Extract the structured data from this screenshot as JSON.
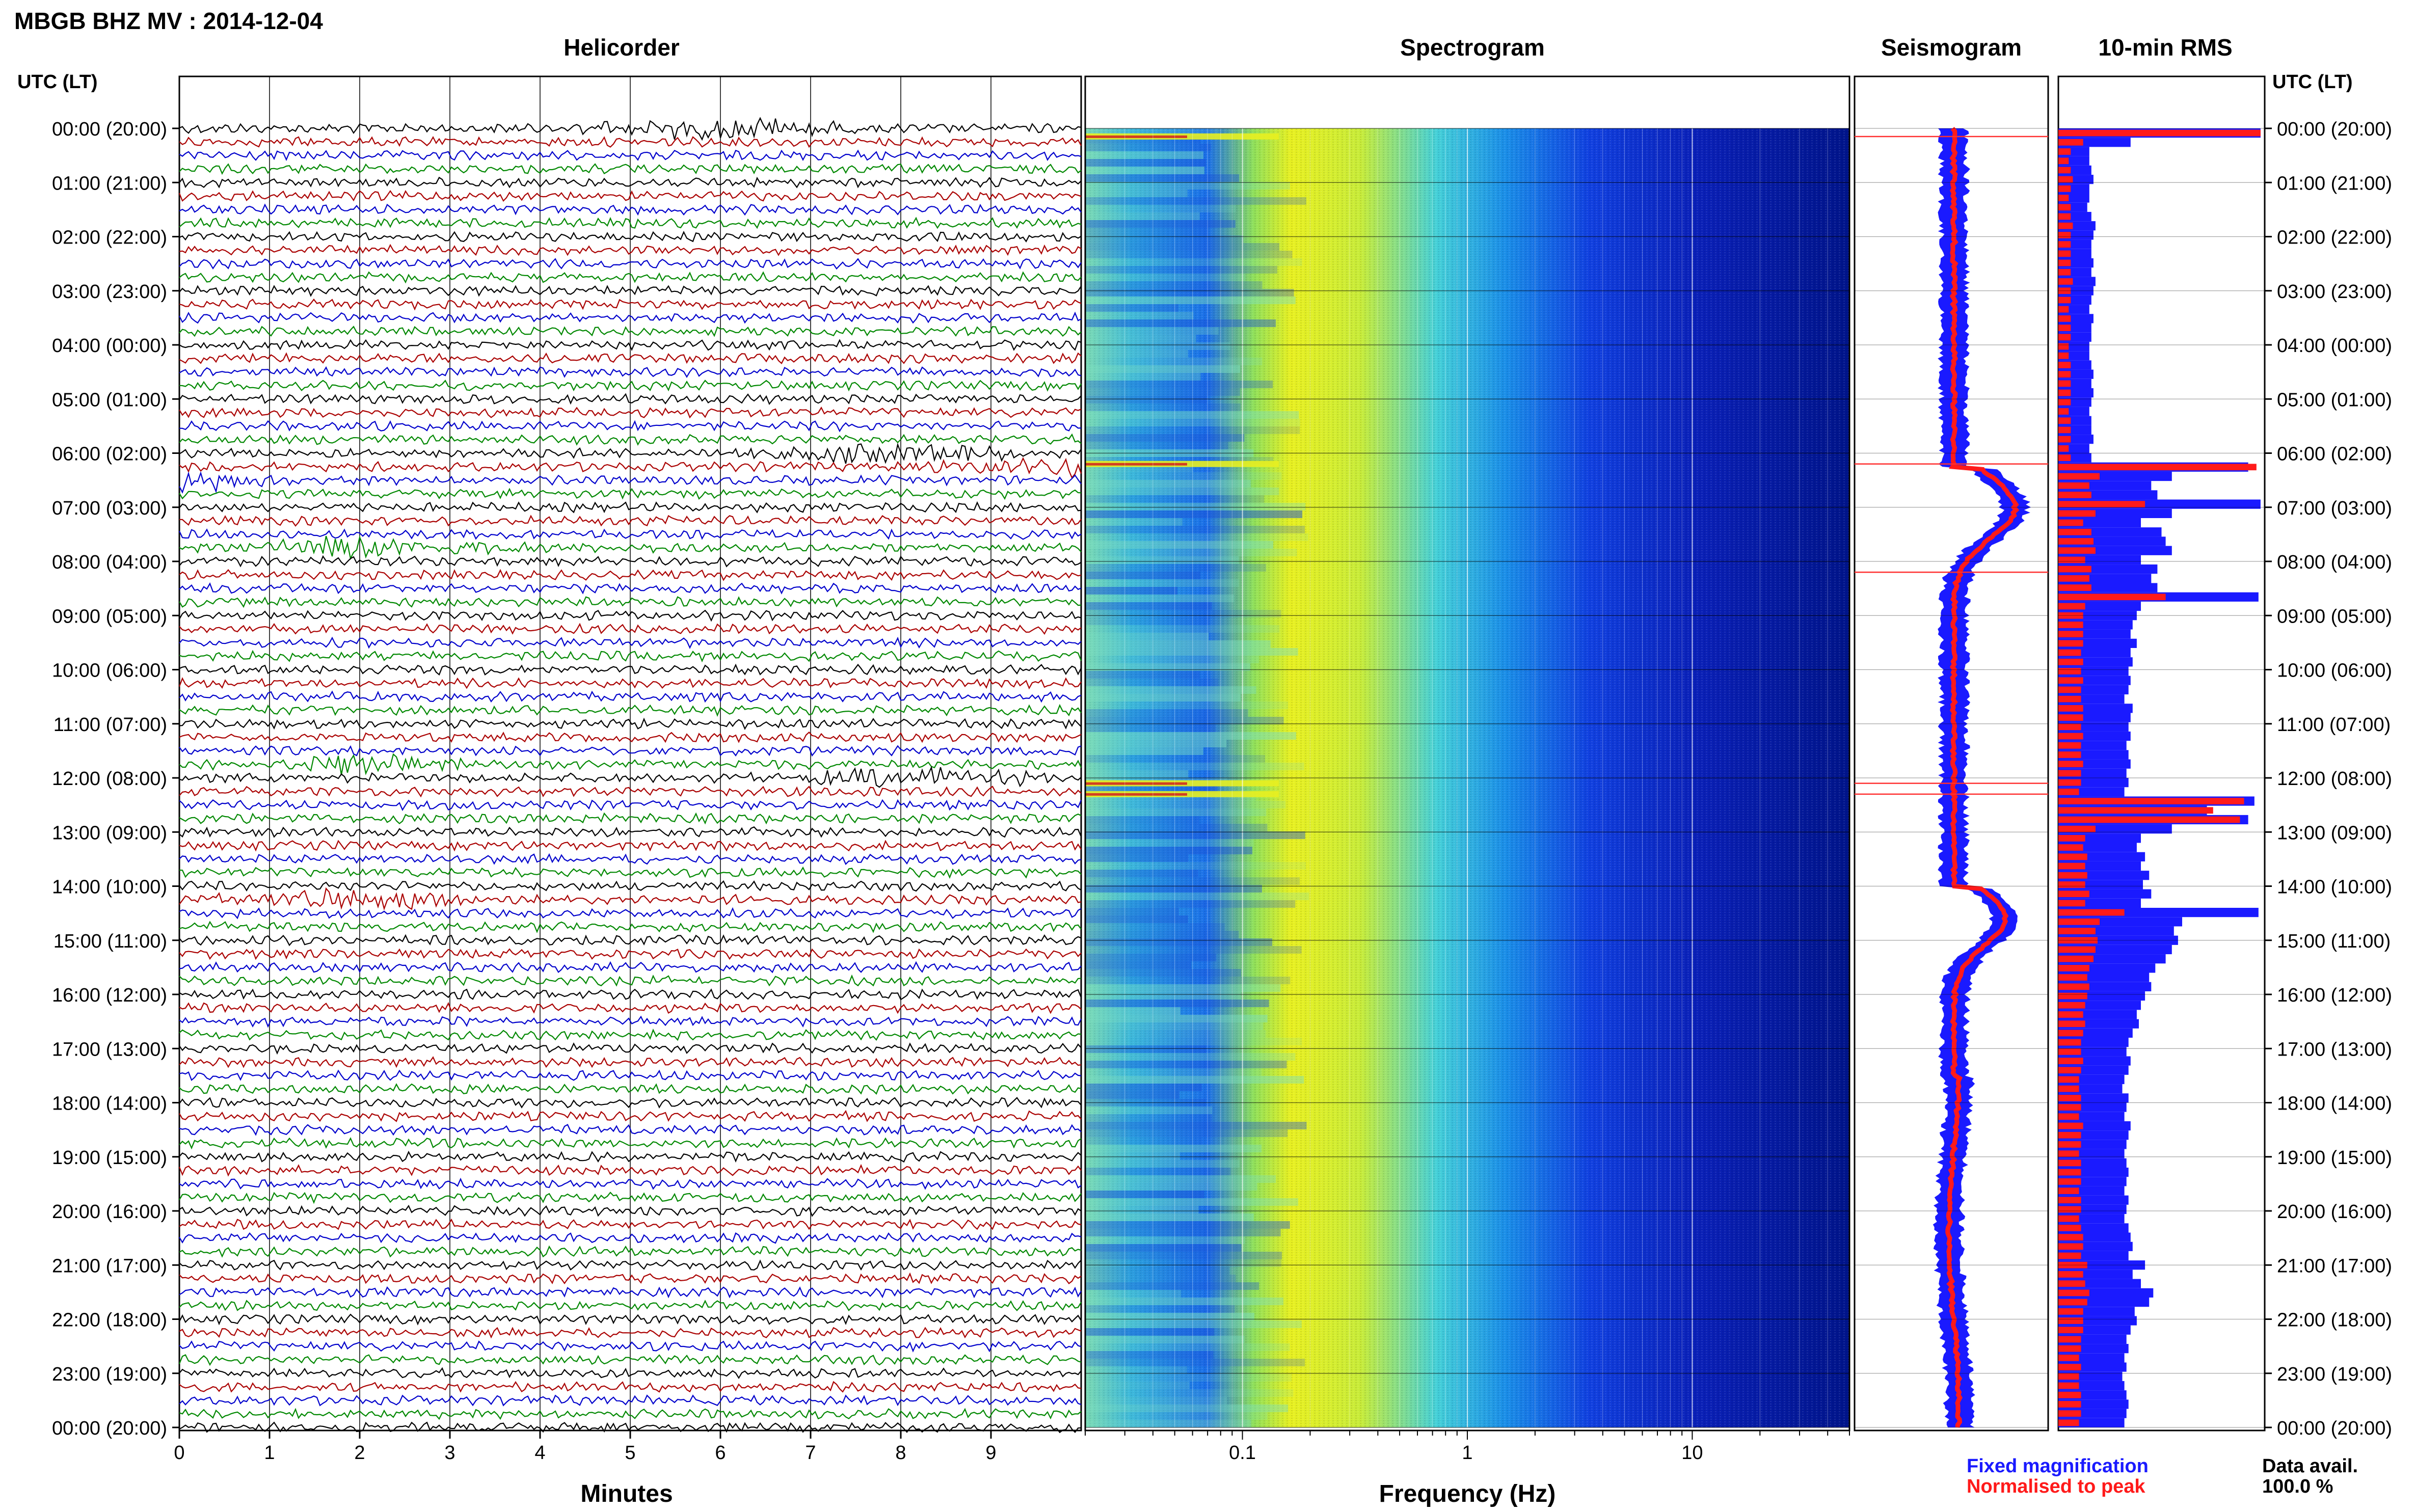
{
  "title": "MBGB BHZ MV : 2014-12-04",
  "panels": {
    "helicorder": "Helicorder",
    "spectrogram": "Spectrogram",
    "seismogram": "Seismogram",
    "rms": "10-min RMS"
  },
  "time_axis_label": "UTC (LT)",
  "time_labels": [
    "00:00 (20:00)",
    "01:00 (21:00)",
    "02:00 (22:00)",
    "03:00 (23:00)",
    "04:00 (00:00)",
    "05:00 (01:00)",
    "06:00 (02:00)",
    "07:00 (03:00)",
    "08:00 (04:00)",
    "09:00 (05:00)",
    "10:00 (06:00)",
    "11:00 (07:00)",
    "12:00 (08:00)",
    "13:00 (09:00)",
    "14:00 (10:00)",
    "15:00 (11:00)",
    "16:00 (12:00)",
    "17:00 (13:00)",
    "18:00 (14:00)",
    "19:00 (15:00)",
    "20:00 (16:00)",
    "21:00 (17:00)",
    "22:00 (18:00)",
    "23:00 (19:00)",
    "00:00 (20:00)"
  ],
  "minutes_axis": {
    "label": "Minutes",
    "ticks": [
      "0",
      "1",
      "2",
      "3",
      "4",
      "5",
      "6",
      "7",
      "8",
      "9"
    ],
    "range": [
      0,
      10
    ]
  },
  "frequency_axis": {
    "label": "Frequency (Hz)",
    "ticks": [
      "0.1",
      "1",
      "10"
    ],
    "scale": "log",
    "range": [
      0.02,
      50
    ]
  },
  "legend": {
    "fixed": "Fixed magnification",
    "normalised": "Normalised to peak",
    "fixed_color": "#1a1aff",
    "normalised_color": "#ff1a1a"
  },
  "data_avail": {
    "label": "Data avail.",
    "value": "100.0 %"
  },
  "chart_data": {
    "type": "helicorder",
    "trace_colors": [
      "#000000",
      "#aa0000",
      "#0000cc",
      "#008800"
    ],
    "hours": 24,
    "events_hours": [
      0.15,
      6.2,
      6.5,
      7.8,
      11.8,
      12.2,
      14.3
    ],
    "rms_fixed": [
      0.98,
      0.35,
      0.15,
      0.15,
      0.16,
      0.17,
      0.15,
      0.15,
      0.14,
      0.16,
      0.18,
      0.17,
      0.16,
      0.16,
      0.17,
      0.16,
      0.18,
      0.17,
      0.16,
      0.15,
      0.17,
      0.16,
      0.16,
      0.15,
      0.15,
      0.16,
      0.17,
      0.16,
      0.17,
      0.16,
      0.15,
      0.16,
      0.16,
      0.17,
      0.15,
      0.16,
      0.92,
      0.55,
      0.45,
      0.48,
      0.98,
      0.55,
      0.4,
      0.5,
      0.52,
      0.55,
      0.4,
      0.48,
      0.45,
      0.48,
      0.97,
      0.4,
      0.38,
      0.36,
      0.35,
      0.38,
      0.35,
      0.36,
      0.34,
      0.35,
      0.34,
      0.32,
      0.36,
      0.35,
      0.34,
      0.35,
      0.33,
      0.34,
      0.35,
      0.33,
      0.34,
      0.32,
      0.95,
      0.72,
      0.92,
      0.55,
      0.4,
      0.38,
      0.42,
      0.4,
      0.44,
      0.41,
      0.45,
      0.4,
      0.97,
      0.6,
      0.56,
      0.58,
      0.55,
      0.52,
      0.47,
      0.44,
      0.45,
      0.42,
      0.4,
      0.38,
      0.39,
      0.36,
      0.34,
      0.33,
      0.35,
      0.34,
      0.32,
      0.31,
      0.34,
      0.33,
      0.32,
      0.35,
      0.34,
      0.33,
      0.32,
      0.33,
      0.34,
      0.33,
      0.32,
      0.34,
      0.33,
      0.32,
      0.34,
      0.35,
      0.36,
      0.34,
      0.42,
      0.36,
      0.4,
      0.46,
      0.44,
      0.37,
      0.38,
      0.35,
      0.33,
      0.34,
      0.32,
      0.33,
      0.31,
      0.32,
      0.33,
      0.34,
      0.33,
      0.32
    ],
    "rms_normalised": [
      0.98,
      0.12,
      0.06,
      0.05,
      0.06,
      0.07,
      0.06,
      0.05,
      0.06,
      0.06,
      0.07,
      0.06,
      0.06,
      0.06,
      0.06,
      0.06,
      0.07,
      0.06,
      0.06,
      0.05,
      0.06,
      0.06,
      0.06,
      0.05,
      0.05,
      0.06,
      0.06,
      0.06,
      0.06,
      0.06,
      0.05,
      0.06,
      0.06,
      0.06,
      0.05,
      0.06,
      0.96,
      0.2,
      0.15,
      0.16,
      0.42,
      0.18,
      0.12,
      0.16,
      0.17,
      0.18,
      0.13,
      0.16,
      0.15,
      0.16,
      0.52,
      0.13,
      0.12,
      0.12,
      0.12,
      0.12,
      0.11,
      0.12,
      0.11,
      0.12,
      0.11,
      0.11,
      0.12,
      0.12,
      0.11,
      0.12,
      0.11,
      0.11,
      0.12,
      0.11,
      0.11,
      0.1,
      0.9,
      0.75,
      0.88,
      0.18,
      0.13,
      0.12,
      0.14,
      0.13,
      0.14,
      0.13,
      0.15,
      0.13,
      0.32,
      0.2,
      0.18,
      0.19,
      0.18,
      0.17,
      0.15,
      0.14,
      0.15,
      0.14,
      0.13,
      0.12,
      0.13,
      0.12,
      0.11,
      0.11,
      0.12,
      0.11,
      0.1,
      0.1,
      0.11,
      0.11,
      0.1,
      0.12,
      0.11,
      0.11,
      0.1,
      0.11,
      0.11,
      0.11,
      0.1,
      0.11,
      0.11,
      0.1,
      0.11,
      0.12,
      0.12,
      0.11,
      0.14,
      0.12,
      0.13,
      0.15,
      0.14,
      0.12,
      0.12,
      0.12,
      0.11,
      0.11,
      0.1,
      0.11,
      0.1,
      0.1,
      0.11,
      0.11,
      0.11,
      0.1
    ]
  }
}
